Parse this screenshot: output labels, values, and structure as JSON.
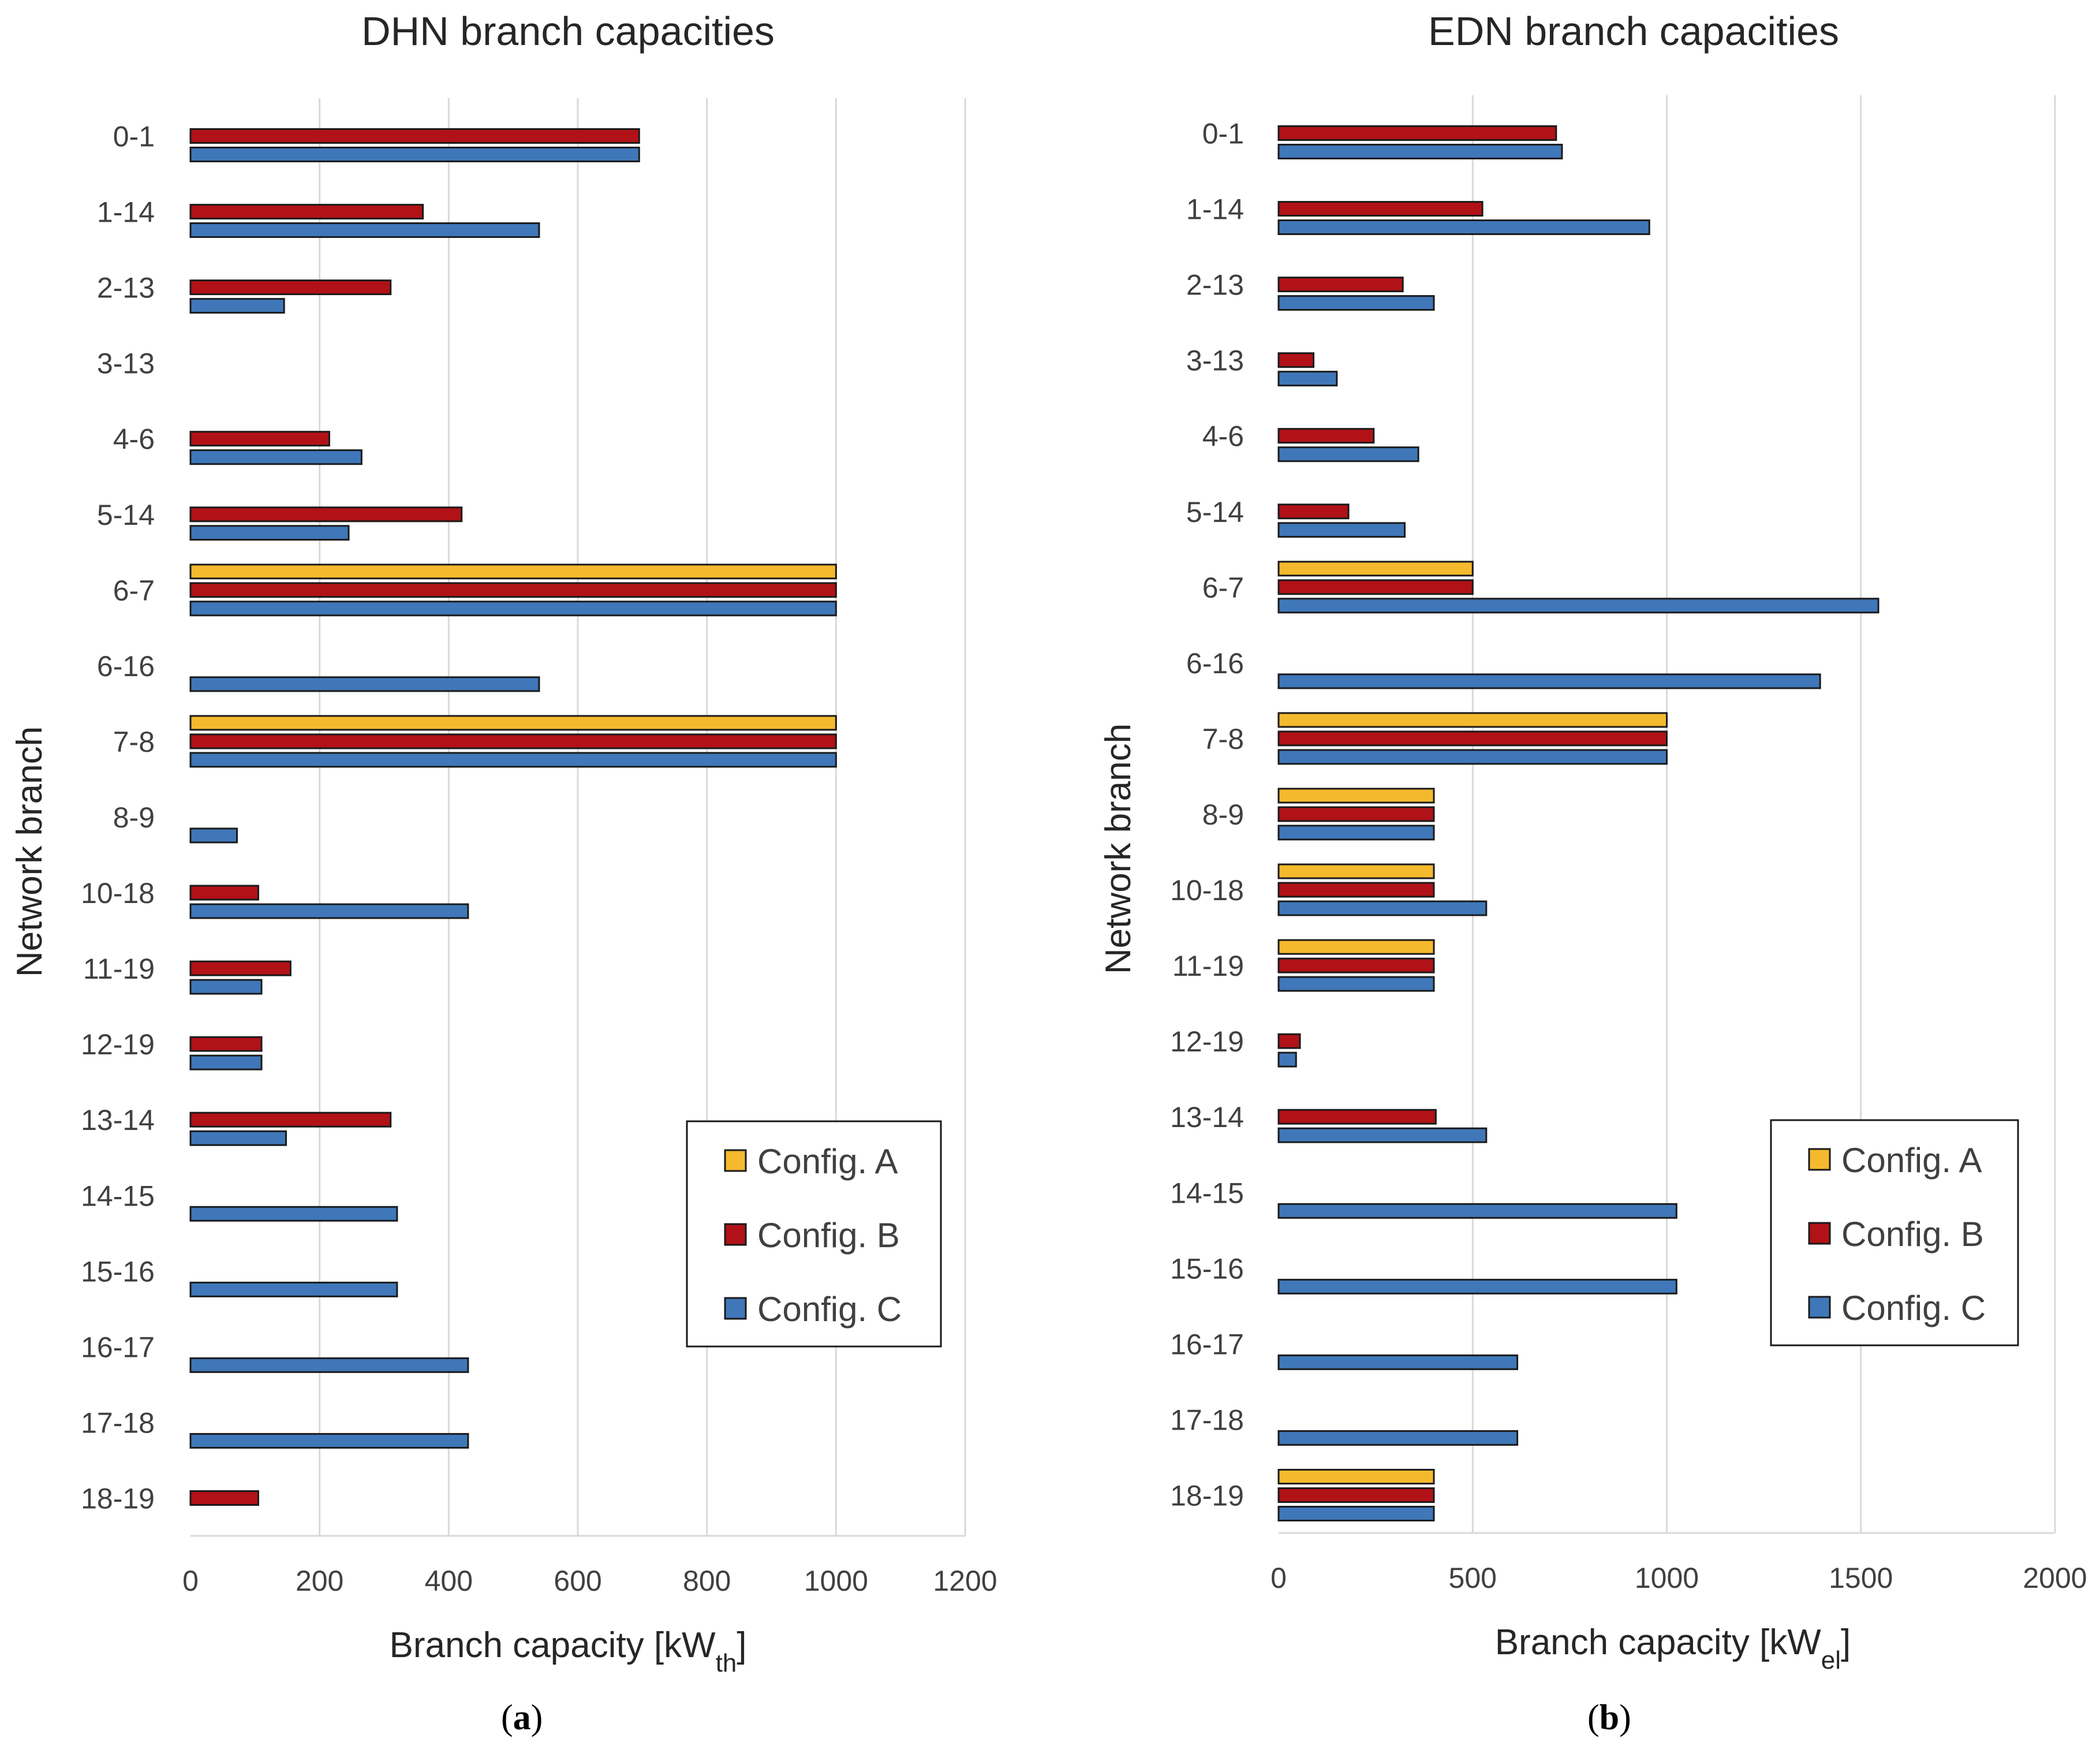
{
  "chart_data": [
    {
      "type": "bar",
      "orientation": "horizontal",
      "title": "DHN branch capacities",
      "xlabel": "Branch capacity [kW",
      "xlabel_sub": "th",
      "xlabel_end": "]",
      "ylabel": "Network branch",
      "xlim": [
        0,
        1200
      ],
      "xticks": [
        0,
        200,
        400,
        600,
        800,
        1000,
        1200
      ],
      "grid": true,
      "legend": "bottom-right",
      "panel_label": "a",
      "categories": [
        "0-1",
        "1-14",
        "2-13",
        "3-13",
        "4-6",
        "5-14",
        "6-7",
        "6-16",
        "7-8",
        "8-9",
        "10-18",
        "11-19",
        "12-19",
        "13-14",
        "14-15",
        "15-16",
        "16-17",
        "17-18",
        "18-19"
      ],
      "series": [
        {
          "name": "Config. A",
          "color": "#f5b92e",
          "values": [
            0,
            0,
            0,
            0,
            0,
            0,
            1000,
            0,
            1000,
            0,
            0,
            0,
            0,
            0,
            0,
            0,
            0,
            0,
            0
          ]
        },
        {
          "name": "Config. B",
          "color": "#b01217",
          "values": [
            695,
            360,
            310,
            0,
            215,
            420,
            1000,
            0,
            1000,
            0,
            105,
            155,
            110,
            310,
            0,
            0,
            0,
            0,
            105
          ]
        },
        {
          "name": "Config. C",
          "color": "#3f77b9",
          "values": [
            695,
            540,
            145,
            0,
            265,
            245,
            1000,
            540,
            1000,
            72,
            430,
            110,
            110,
            148,
            320,
            320,
            430,
            430,
            0
          ]
        }
      ]
    },
    {
      "type": "bar",
      "orientation": "horizontal",
      "title": "EDN branch capacities",
      "xlabel": "Branch capacity [kW",
      "xlabel_sub": "el",
      "xlabel_end": "]",
      "ylabel": "Network branch",
      "xlim": [
        0,
        2000
      ],
      "xticks": [
        0,
        500,
        1000,
        1500,
        2000
      ],
      "grid": true,
      "legend": "bottom-right",
      "panel_label": "b",
      "categories": [
        "0-1",
        "1-14",
        "2-13",
        "3-13",
        "4-6",
        "5-14",
        "6-7",
        "6-16",
        "7-8",
        "8-9",
        "10-18",
        "11-19",
        "12-19",
        "13-14",
        "14-15",
        "15-16",
        "16-17",
        "17-18",
        "18-19"
      ],
      "series": [
        {
          "name": "Config. A",
          "color": "#f5b92e",
          "values": [
            0,
            0,
            0,
            0,
            0,
            0,
            500,
            0,
            1000,
            400,
            400,
            400,
            0,
            0,
            0,
            0,
            0,
            0,
            400
          ]
        },
        {
          "name": "Config. B",
          "color": "#b01217",
          "values": [
            715,
            525,
            320,
            90,
            245,
            180,
            500,
            0,
            1000,
            400,
            400,
            400,
            55,
            405,
            0,
            0,
            0,
            0,
            400
          ]
        },
        {
          "name": "Config. C",
          "color": "#3f77b9",
          "values": [
            730,
            955,
            400,
            150,
            360,
            325,
            1545,
            1395,
            1000,
            400,
            535,
            400,
            45,
            535,
            1025,
            1025,
            615,
            615,
            400
          ]
        }
      ]
    }
  ]
}
